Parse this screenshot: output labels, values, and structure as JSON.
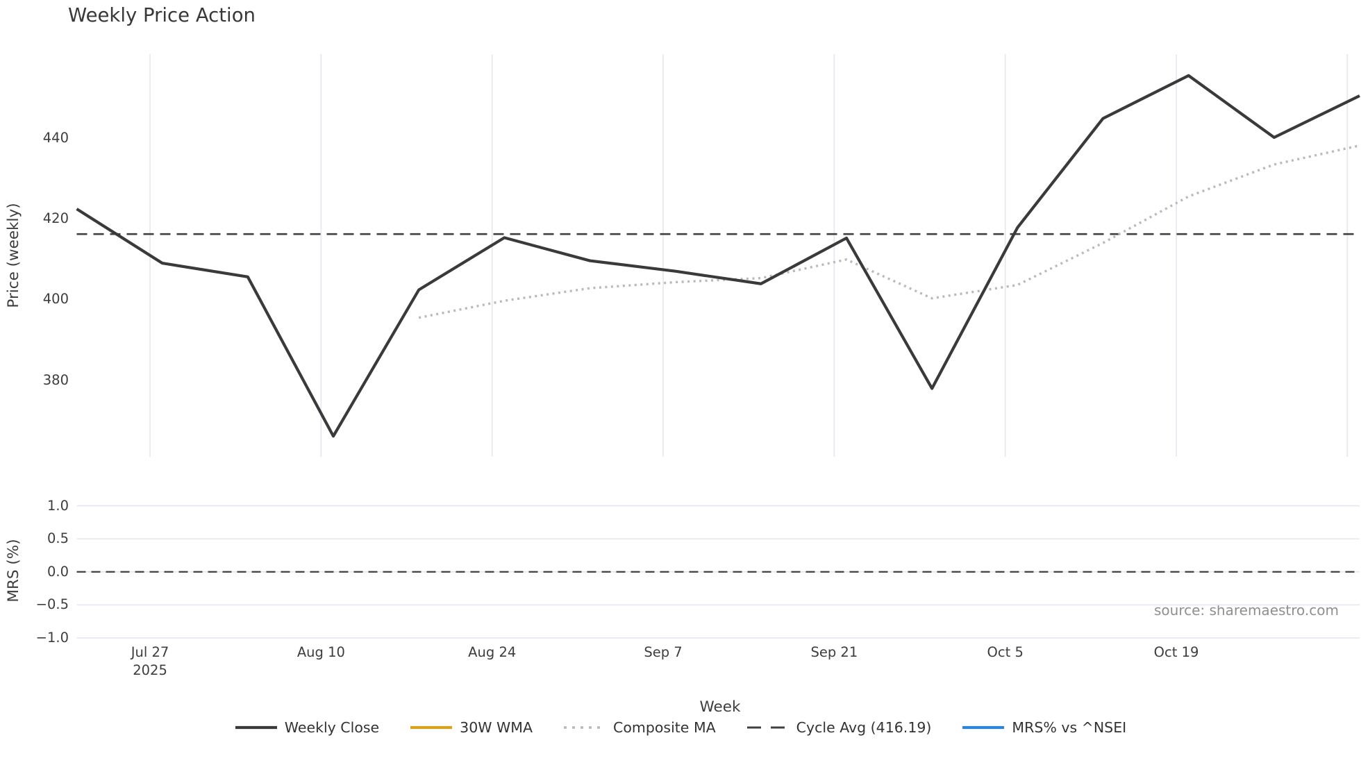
{
  "title": "Weekly Price Action",
  "source_note": "source: sharemaestro.com",
  "labels": {
    "price_axis": "Price (weekly)",
    "mrs_axis": "MRS (%)",
    "week_axis": "Week"
  },
  "colors": {
    "weekly_close": "#3a3a3a",
    "wma_30": "#d7a21e",
    "composite_ma": "#b9b9b9",
    "cycle_avg": "#3f3f3f",
    "mrs_line": "#2d85d8",
    "grid": "#e6e6ef",
    "text": "#3d3d3d",
    "source_text": "#8f8f8f"
  },
  "chart_data": {
    "type": "line",
    "title": "Weekly Price Action",
    "xlabel": "Week",
    "panels": [
      {
        "name": "price",
        "ylabel": "Price (weekly)"
      },
      {
        "name": "mrs",
        "ylabel": "MRS (%)"
      }
    ],
    "x_weekly": [
      "Jul 21",
      "Jul 28",
      "Aug 4",
      "Aug 11",
      "Aug 18",
      "Aug 25",
      "Sep 1",
      "Sep 8",
      "Sep 15",
      "Sep 22",
      "Sep 29",
      "Oct 6",
      "Oct 13",
      "Oct 20",
      "Oct 27",
      "Nov 3"
    ],
    "year": "2025",
    "series": [
      {
        "name": "Weekly Close",
        "panel": "price",
        "style": "solid",
        "values": [
          422.4,
          409.0,
          405.6,
          366.2,
          402.4,
          415.3,
          409.6,
          407.0,
          403.9,
          415.2,
          378.0,
          417.8,
          444.8,
          455.4,
          440.1,
          450.4
        ]
      },
      {
        "name": "30W WMA",
        "panel": "price",
        "style": "solid",
        "values": null,
        "note": "legend entry only; no visible line in plot"
      },
      {
        "name": "Composite MA",
        "panel": "price",
        "style": "dotted",
        "values": [
          null,
          null,
          null,
          null,
          395.5,
          399.7,
          402.8,
          404.3,
          405.3,
          409.9,
          400.3,
          403.6,
          414.0,
          425.5,
          433.4,
          438.1
        ]
      },
      {
        "name": "Cycle Avg (416.19)",
        "panel": "price",
        "style": "dashed-horizontal",
        "value": 416.19
      },
      {
        "name": "MRS% vs ^NSEI",
        "panel": "mrs",
        "style": "solid",
        "values": null,
        "note": "legend entry only; no visible line in plot"
      }
    ],
    "mrs_zero_dashed_line": 0.0,
    "price_axis": {
      "ticks": [
        {
          "label": "440",
          "value": 440
        },
        {
          "label": "420",
          "value": 420
        },
        {
          "label": "400",
          "value": 400
        },
        {
          "label": "380",
          "value": 380
        }
      ],
      "ylim": [
        361.1,
        460.7
      ],
      "grid": "vertical-only"
    },
    "mrs_axis": {
      "ticks": [
        {
          "label": "1.0",
          "value": 1.0
        },
        {
          "label": "0.5",
          "value": 0.5
        },
        {
          "label": "0.0",
          "value": 0.0
        },
        {
          "label": "−0.5",
          "value": -0.5
        },
        {
          "label": "−1.0",
          "value": -1.0
        }
      ],
      "ylim": [
        -1.1,
        1.1
      ],
      "grid": "horizontal-only"
    },
    "x_ticks": [
      {
        "label": "Jul 27",
        "sublabel": "2025",
        "week_pos": 0.857
      },
      {
        "label": "Aug 10",
        "week_pos": 2.857
      },
      {
        "label": "Aug 24",
        "week_pos": 4.857
      },
      {
        "label": "Sep 7",
        "week_pos": 6.857
      },
      {
        "label": "Sep 21",
        "week_pos": 8.857
      },
      {
        "label": "Oct 5",
        "week_pos": 10.857
      },
      {
        "label": "Oct 19",
        "week_pos": 12.857
      }
    ],
    "extra_gridline_week_positions": [
      14.857
    ],
    "legend_position": "below-chart-centered"
  },
  "legend": [
    {
      "label": "Weekly Close",
      "color": "#3a3a3a",
      "dash": "",
      "width": 4.2
    },
    {
      "label": "30W WMA",
      "color": "#d7a21e",
      "dash": "",
      "width": 4.2
    },
    {
      "label": "Composite MA",
      "color": "#b9b9b9",
      "dash": "4 8",
      "width": 3.6
    },
    {
      "label": "Cycle Avg (416.19)",
      "color": "#3f3f3f",
      "dash": "20 14",
      "width": 3.0
    },
    {
      "label": "MRS% vs ^NSEI",
      "color": "#2d85d8",
      "dash": "",
      "width": 4.2
    }
  ]
}
